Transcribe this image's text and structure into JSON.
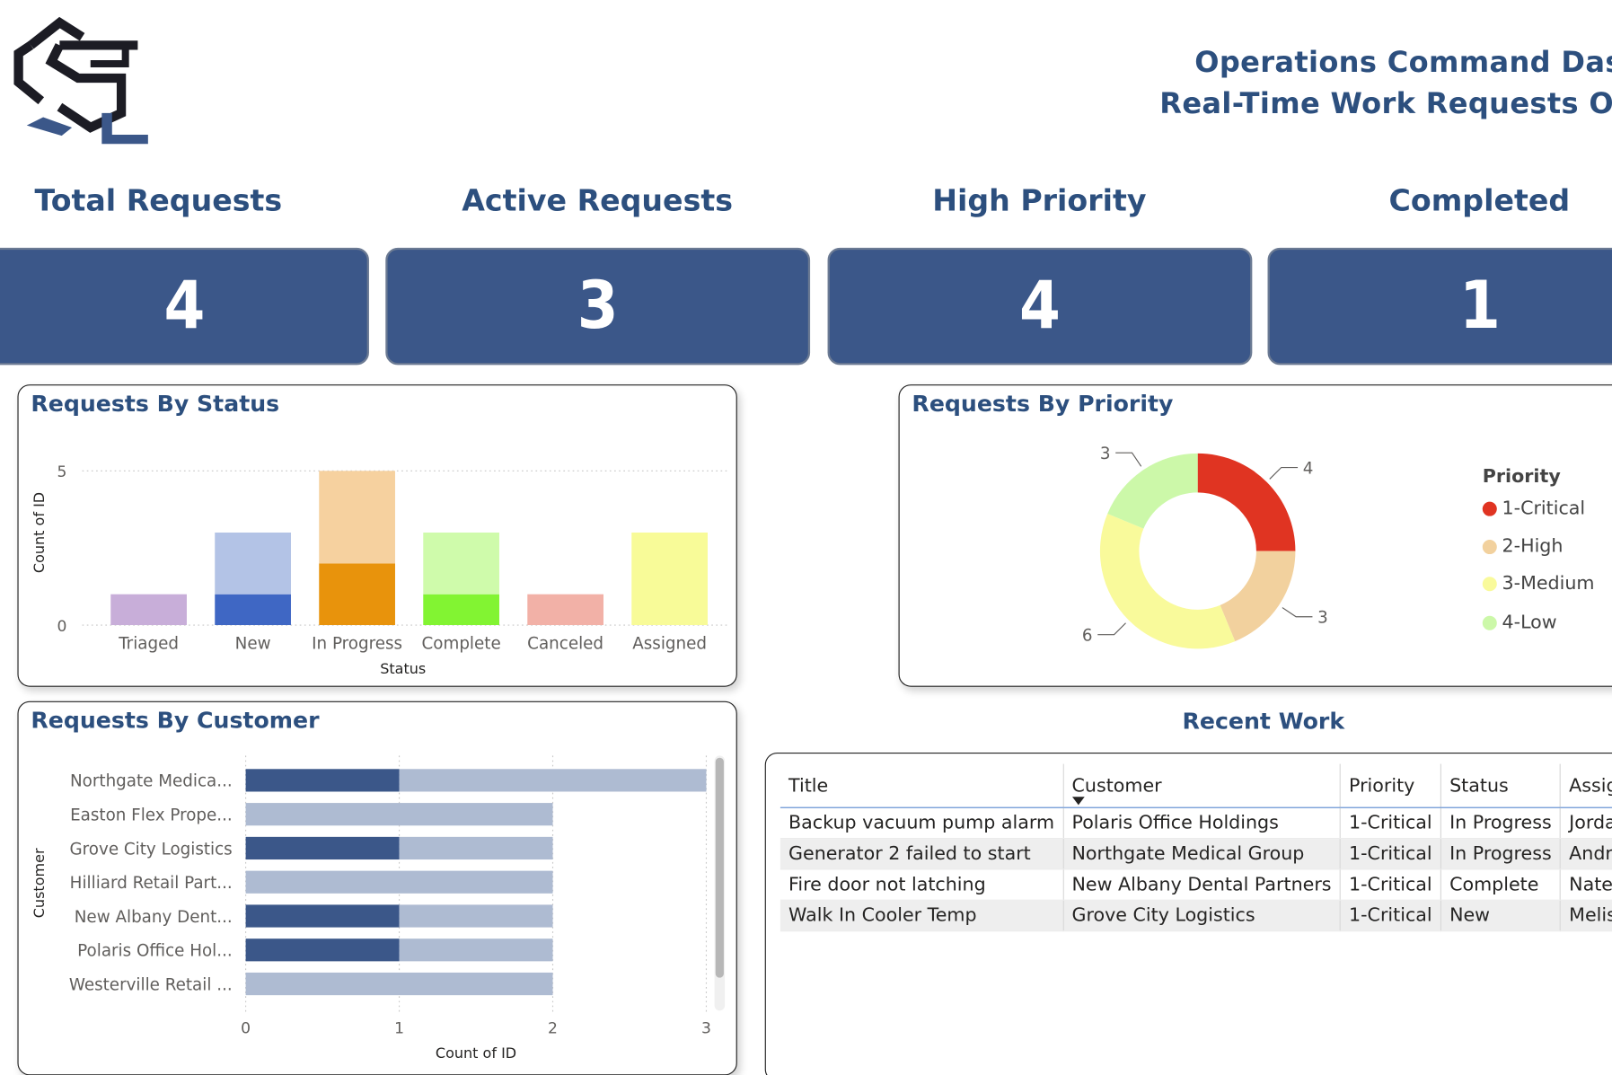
{
  "header": {
    "title_line1": "Operations Command Dashl",
    "title_line2": "Real-Time Work Requests Ove"
  },
  "logo": {
    "name": "company-logo"
  },
  "kpis": [
    {
      "label": "Total Requests",
      "value": "4"
    },
    {
      "label": "Active Requests",
      "value": "3"
    },
    {
      "label": "High Priority",
      "value": "4"
    },
    {
      "label": "Completed",
      "value": "1"
    }
  ],
  "status_panel": {
    "title": "Requests By Status"
  },
  "priority_panel": {
    "title": "Requests By Priority"
  },
  "customer_panel": {
    "title": "Requests By Customer"
  },
  "recent_work": {
    "title": "Recent Work",
    "columns": [
      "Title",
      "Customer",
      "Priority",
      "Status",
      "Assigned"
    ],
    "rows": [
      [
        "Backup vacuum pump alarm",
        "Polaris Office Holdings",
        "1-Critical",
        "In Progress",
        "Jordan Pri"
      ],
      [
        "Generator 2 failed to start",
        "Northgate Medical Group",
        "1-Critical",
        "In Progress",
        "Andre Wa"
      ],
      [
        "Fire door not latching",
        "New Albany Dental Partners",
        "1-Critical",
        "Complete",
        "Nate Broc"
      ],
      [
        "Walk In Cooler Temp",
        "Grove City Logistics",
        "1-Critical",
        "New",
        "Melissa G"
      ]
    ]
  },
  "chart_data": [
    {
      "type": "bar",
      "title": "Requests By Status",
      "xlabel": "Status",
      "ylabel": "Count of ID",
      "ylim": [
        0,
        5
      ],
      "yticks": [
        "0",
        "5"
      ],
      "grid": true,
      "categories": [
        "Triaged",
        "New",
        "In Progress",
        "Complete",
        "Canceled",
        "Assigned"
      ],
      "stacks": [
        {
          "category": "Triaged",
          "segments": [
            {
              "value": 1,
              "color": "#c8aed9"
            }
          ]
        },
        {
          "category": "New",
          "segments": [
            {
              "value": 1,
              "color": "#3f67c4"
            },
            {
              "value": 2,
              "color": "#b3c3e6"
            }
          ]
        },
        {
          "category": "In Progress",
          "segments": [
            {
              "value": 2,
              "color": "#e8930c"
            },
            {
              "value": 3,
              "color": "#f6d19f"
            }
          ]
        },
        {
          "category": "Complete",
          "segments": [
            {
              "value": 1,
              "color": "#82f432"
            },
            {
              "value": 2,
              "color": "#cffbab"
            }
          ]
        },
        {
          "category": "Canceled",
          "segments": [
            {
              "value": 1,
              "color": "#f2b1a7"
            }
          ]
        },
        {
          "category": "Assigned",
          "segments": [
            {
              "value": 3,
              "color": "#f8fb98"
            }
          ]
        }
      ]
    },
    {
      "type": "pie",
      "donut": true,
      "title": "Requests By Priority",
      "legend_title": "Priority",
      "legend_position": "right",
      "slices": [
        {
          "label": "1-Critical",
          "value": 4,
          "color": "#e03422"
        },
        {
          "label": "2-High",
          "value": 3,
          "color": "#f2d19e"
        },
        {
          "label": "3-Medium",
          "value": 6,
          "color": "#f9fa9b"
        },
        {
          "label": "4-Low",
          "value": 3,
          "color": "#ccf8a9"
        }
      ]
    },
    {
      "type": "bar",
      "orientation": "horizontal",
      "title": "Requests By Customer",
      "xlabel": "Count of ID",
      "ylabel": "Customer",
      "xlim": [
        0,
        3
      ],
      "xticks": [
        "0",
        "1",
        "2",
        "3"
      ],
      "grid": true,
      "categories": [
        "Northgate Medica...",
        "Easton Flex Prope...",
        "Grove City Logistics",
        "Hilliard Retail Part...",
        "New Albany Dent...",
        "Polaris Office Hol...",
        "Westerville Retail ..."
      ],
      "series": [
        {
          "values": [
            1,
            0,
            1,
            0,
            1,
            1,
            0
          ],
          "color": "#3b5789"
        },
        {
          "values": [
            2,
            2,
            1,
            2,
            1,
            1,
            2
          ],
          "color": "#aebbd2"
        }
      ]
    }
  ]
}
